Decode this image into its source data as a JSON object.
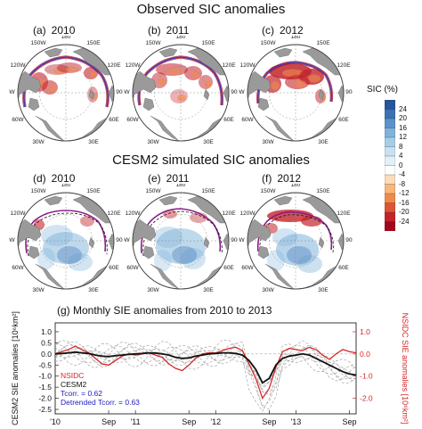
{
  "titles": {
    "observed": "Observed SIC anomalies",
    "simulated": "CESM2 simulated SIC anomalies"
  },
  "panels": [
    {
      "label": "(a)",
      "year": "2010"
    },
    {
      "label": "(b)",
      "year": "2011"
    },
    {
      "label": "(c)",
      "year": "2012"
    },
    {
      "label": "(d)",
      "year": "2010"
    },
    {
      "label": "(e)",
      "year": "2011"
    },
    {
      "label": "(f)",
      "year": "2012"
    }
  ],
  "map_lon_labels": {
    "top": "180",
    "upper_left": "150W",
    "upper_right": "150E",
    "mid_upper_left": "120W",
    "mid_upper_right": "120E",
    "left": "90W",
    "right": "90E",
    "mid_lower_left": "60W",
    "mid_lower_right": "60E",
    "lower_left": "30W",
    "lower_right": "30E"
  },
  "colorbar": {
    "title": "SIC (%)",
    "ticks": [
      "24",
      "20",
      "16",
      "12",
      "8",
      "4",
      "0",
      "-4",
      "-8",
      "-12",
      "-16",
      "-20",
      "-24"
    ],
    "colors": [
      "#27559c",
      "#3b72b4",
      "#5a93c9",
      "#7fb3da",
      "#a5cde6",
      "#c8e1f0",
      "#e3f0f8",
      "#ffffff",
      "#fcdcb9",
      "#fab77a",
      "#f08a4b",
      "#de5437",
      "#c4232b",
      "#a0081f"
    ]
  },
  "chart_data": {
    "type": "line",
    "title": "(g) Monthly SIE anomalies from 2010 to 2013",
    "ylabel_left": "CESM2 SIE anomalies [10⁶km²]",
    "ylabel_right": "NSIDC SIE anomalies [10⁶km²]",
    "ylim_left": [
      -2.7,
      1.4
    ],
    "ylim_right": [
      -2.7,
      1.4
    ],
    "yticks_left": [
      "1.0",
      "0.5",
      "0.0",
      "-0.5",
      "-1.0",
      "-1.5",
      "-2.0",
      "-2.5"
    ],
    "yticks_right": [
      "1.0",
      "0.0",
      "-1.0",
      "-2.0"
    ],
    "x_tick_labels": [
      {
        "month": 0,
        "text": "'10"
      },
      {
        "month": 8,
        "text": "Sep"
      },
      {
        "month": 12,
        "text": "'11"
      },
      {
        "month": 20,
        "text": "Sep"
      },
      {
        "month": 24,
        "text": "'12"
      },
      {
        "month": 32,
        "text": "Sep"
      },
      {
        "month": 36,
        "text": "'13"
      },
      {
        "month": 44,
        "text": "Sep"
      }
    ],
    "xlim": [
      0,
      45
    ],
    "legend_position": "bottom-left",
    "legend": [
      {
        "text": "NSIDC",
        "color": "#d62728"
      },
      {
        "text": "CESM2",
        "color": "#111111"
      },
      {
        "text": "Tcorr. = 0.62",
        "color": "#1f1fbf"
      },
      {
        "text": "Detrended Tcorr. = 0.63",
        "color": "#1f1fbf"
      }
    ],
    "series": [
      {
        "name": "NSIDC",
        "color": "#d62728",
        "values": [
          0.0,
          0.1,
          0.2,
          0.35,
          0.2,
          0.05,
          -0.2,
          -0.45,
          -0.5,
          -0.3,
          -0.1,
          0.0,
          -0.05,
          0.0,
          0.05,
          -0.05,
          -0.15,
          -0.45,
          -0.65,
          -0.75,
          -0.5,
          -0.2,
          0.0,
          0.05,
          0.05,
          0.15,
          0.25,
          0.3,
          0.15,
          -0.45,
          -1.1,
          -2.0,
          -1.55,
          -0.6,
          0.1,
          0.25,
          0.2,
          0.15,
          0.3,
          0.2,
          -0.05,
          -0.25,
          0.0,
          0.2,
          0.1,
          0.05
        ]
      },
      {
        "name": "CESM2",
        "color": "#111111",
        "values": [
          0.0,
          0.02,
          0.05,
          0.08,
          0.05,
          0.02,
          -0.05,
          -0.1,
          -0.12,
          -0.08,
          -0.05,
          -0.02,
          0.0,
          0.02,
          0.05,
          0.04,
          0.0,
          -0.05,
          -0.15,
          -0.2,
          -0.18,
          -0.1,
          -0.05,
          0.0,
          0.02,
          0.05,
          0.05,
          0.02,
          -0.05,
          -0.3,
          -0.7,
          -1.3,
          -1.1,
          -0.5,
          -0.2,
          -0.1,
          -0.05,
          0.0,
          -0.05,
          -0.2,
          -0.35,
          -0.5,
          -0.65,
          -0.8,
          -0.9,
          -0.95
        ]
      }
    ]
  }
}
